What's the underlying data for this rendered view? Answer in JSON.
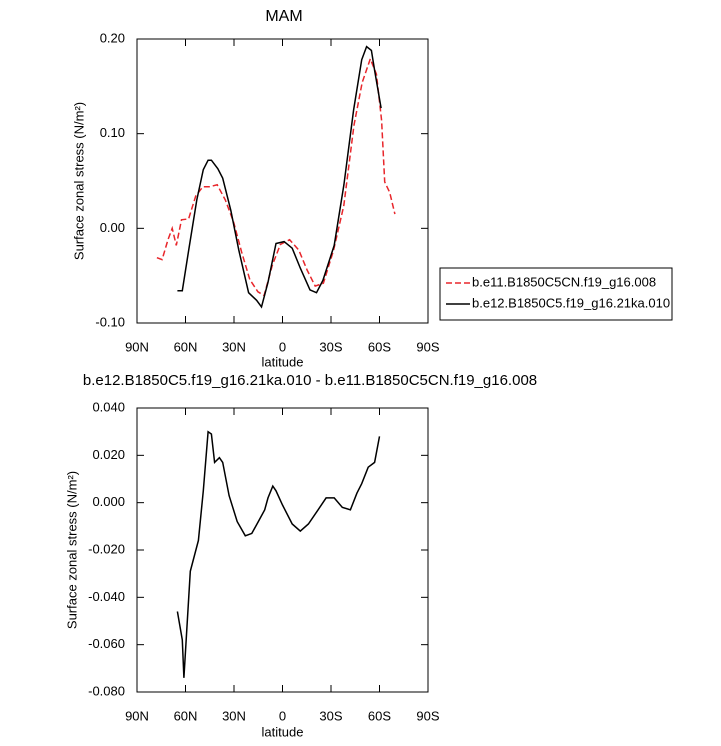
{
  "chart_data": [
    {
      "type": "line",
      "title": "MAM",
      "xlabel": "latitude",
      "ylabel": "Surface zonal stress (N/m²)",
      "xlim": [
        90,
        -90
      ],
      "xticks": [
        {
          "value": 90,
          "label": "90N"
        },
        {
          "value": 60,
          "label": "60N"
        },
        {
          "value": 30,
          "label": "30N"
        },
        0,
        {
          "value": -30,
          "label": "30S"
        },
        {
          "value": -60,
          "label": "60S"
        },
        {
          "value": -90,
          "label": "90S"
        }
      ],
      "ylim": [
        -0.1,
        0.2
      ],
      "yticks": [
        {
          "value": -0.1,
          "label": "-0.10"
        },
        {
          "value": 0,
          "label": "0.00"
        },
        {
          "value": 0.1,
          "label": "0.10"
        },
        {
          "value": 0.2,
          "label": "0.20"
        }
      ],
      "legend": "right",
      "series": [
        {
          "name": "b.e11.B1850C5CN.f19_g16.008",
          "color": "#e8262b",
          "style": "dashed",
          "x": [
            77.7,
            74.5,
            70.8,
            68.2,
            65.7,
            62.5,
            58.1,
            53.7,
            49.3,
            44.9,
            40.4,
            35.4,
            30.3,
            25.3,
            20.2,
            15.2,
            11.4,
            6.3,
            1.3,
            -4.4,
            -10.1,
            -15.2,
            -20.2,
            -25.3,
            -31.6,
            -37.9,
            -44.2,
            -49.3,
            -54.3,
            -58.1,
            -61.3,
            -63.2,
            -66.3,
            -69.5
          ],
          "values": [
            -0.031,
            -0.033,
            -0.012,
            0.0,
            -0.018,
            0.009,
            0.01,
            0.034,
            0.044,
            0.044,
            0.046,
            0.03,
            0.007,
            -0.025,
            -0.054,
            -0.067,
            -0.071,
            -0.039,
            -0.017,
            -0.012,
            -0.023,
            -0.044,
            -0.061,
            -0.058,
            -0.023,
            0.024,
            0.109,
            0.154,
            0.179,
            0.163,
            0.114,
            0.049,
            0.038,
            0.015
          ]
        },
        {
          "name": "b.e12.B1850C5.f19_g16.21ka.010",
          "color": "#000000",
          "style": "solid",
          "x": [
            65,
            62,
            58,
            53,
            49,
            46,
            44,
            40,
            37,
            32,
            27,
            21,
            16,
            13,
            9,
            4,
            -1,
            -6,
            -11,
            -17,
            -21,
            -25,
            -32,
            -38,
            -44,
            -49,
            -52,
            -55,
            -57,
            -61
          ],
          "values": [
            -0.066,
            -0.066,
            -0.023,
            0.03,
            0.062,
            0.072,
            0.072,
            0.063,
            0.053,
            0.019,
            -0.023,
            -0.068,
            -0.076,
            -0.083,
            -0.057,
            -0.016,
            -0.014,
            -0.021,
            -0.042,
            -0.065,
            -0.068,
            -0.055,
            -0.018,
            0.046,
            0.125,
            0.178,
            0.192,
            0.188,
            0.167,
            0.127
          ]
        }
      ]
    },
    {
      "type": "line",
      "title": "b.e12.B1850C5.f19_g16.21ka.010 - b.e11.B1850C5CN.f19_g16.008",
      "xlabel": "latitude",
      "ylabel": "Surface zonal stress (N/m²)",
      "xlim": [
        90,
        -90
      ],
      "xticks": [
        {
          "value": 90,
          "label": "90N"
        },
        {
          "value": 60,
          "label": "60N"
        },
        {
          "value": 30,
          "label": "30N"
        },
        0,
        {
          "value": -30,
          "label": "30S"
        },
        {
          "value": -60,
          "label": "60S"
        },
        {
          "value": -90,
          "label": "90S"
        }
      ],
      "ylim": [
        -0.08,
        0.04
      ],
      "yticks": [
        {
          "value": -0.08,
          "label": "-0.080"
        },
        {
          "value": -0.06,
          "label": "-0.060"
        },
        {
          "value": -0.04,
          "label": "-0.040"
        },
        {
          "value": -0.02,
          "label": "-0.020"
        },
        {
          "value": 0,
          "label": "0.000"
        },
        {
          "value": 0.02,
          "label": "0.020"
        },
        {
          "value": 0.04,
          "label": "0.040"
        }
      ],
      "series": [
        {
          "color": "#000000",
          "style": "solid",
          "x": [
            65,
            62,
            61,
            57,
            52,
            49,
            46,
            44,
            42,
            39,
            37,
            33,
            28,
            23,
            19,
            15,
            11,
            9,
            6,
            4,
            0,
            -6,
            -11,
            -16,
            -22,
            -27,
            -32,
            -37,
            -42,
            -46,
            -49,
            -53,
            -57,
            -60
          ],
          "values": [
            -0.046,
            -0.058,
            -0.074,
            -0.029,
            -0.016,
            0.005,
            0.03,
            0.029,
            0.017,
            0.019,
            0.017,
            0.003,
            -0.008,
            -0.014,
            -0.013,
            -0.008,
            -0.003,
            0.002,
            0.007,
            0.005,
            -0.001,
            -0.009,
            -0.012,
            -0.009,
            -0.003,
            0.002,
            0.002,
            -0.002,
            -0.003,
            0.004,
            0.008,
            0.015,
            0.017,
            0.028
          ]
        }
      ]
    }
  ]
}
